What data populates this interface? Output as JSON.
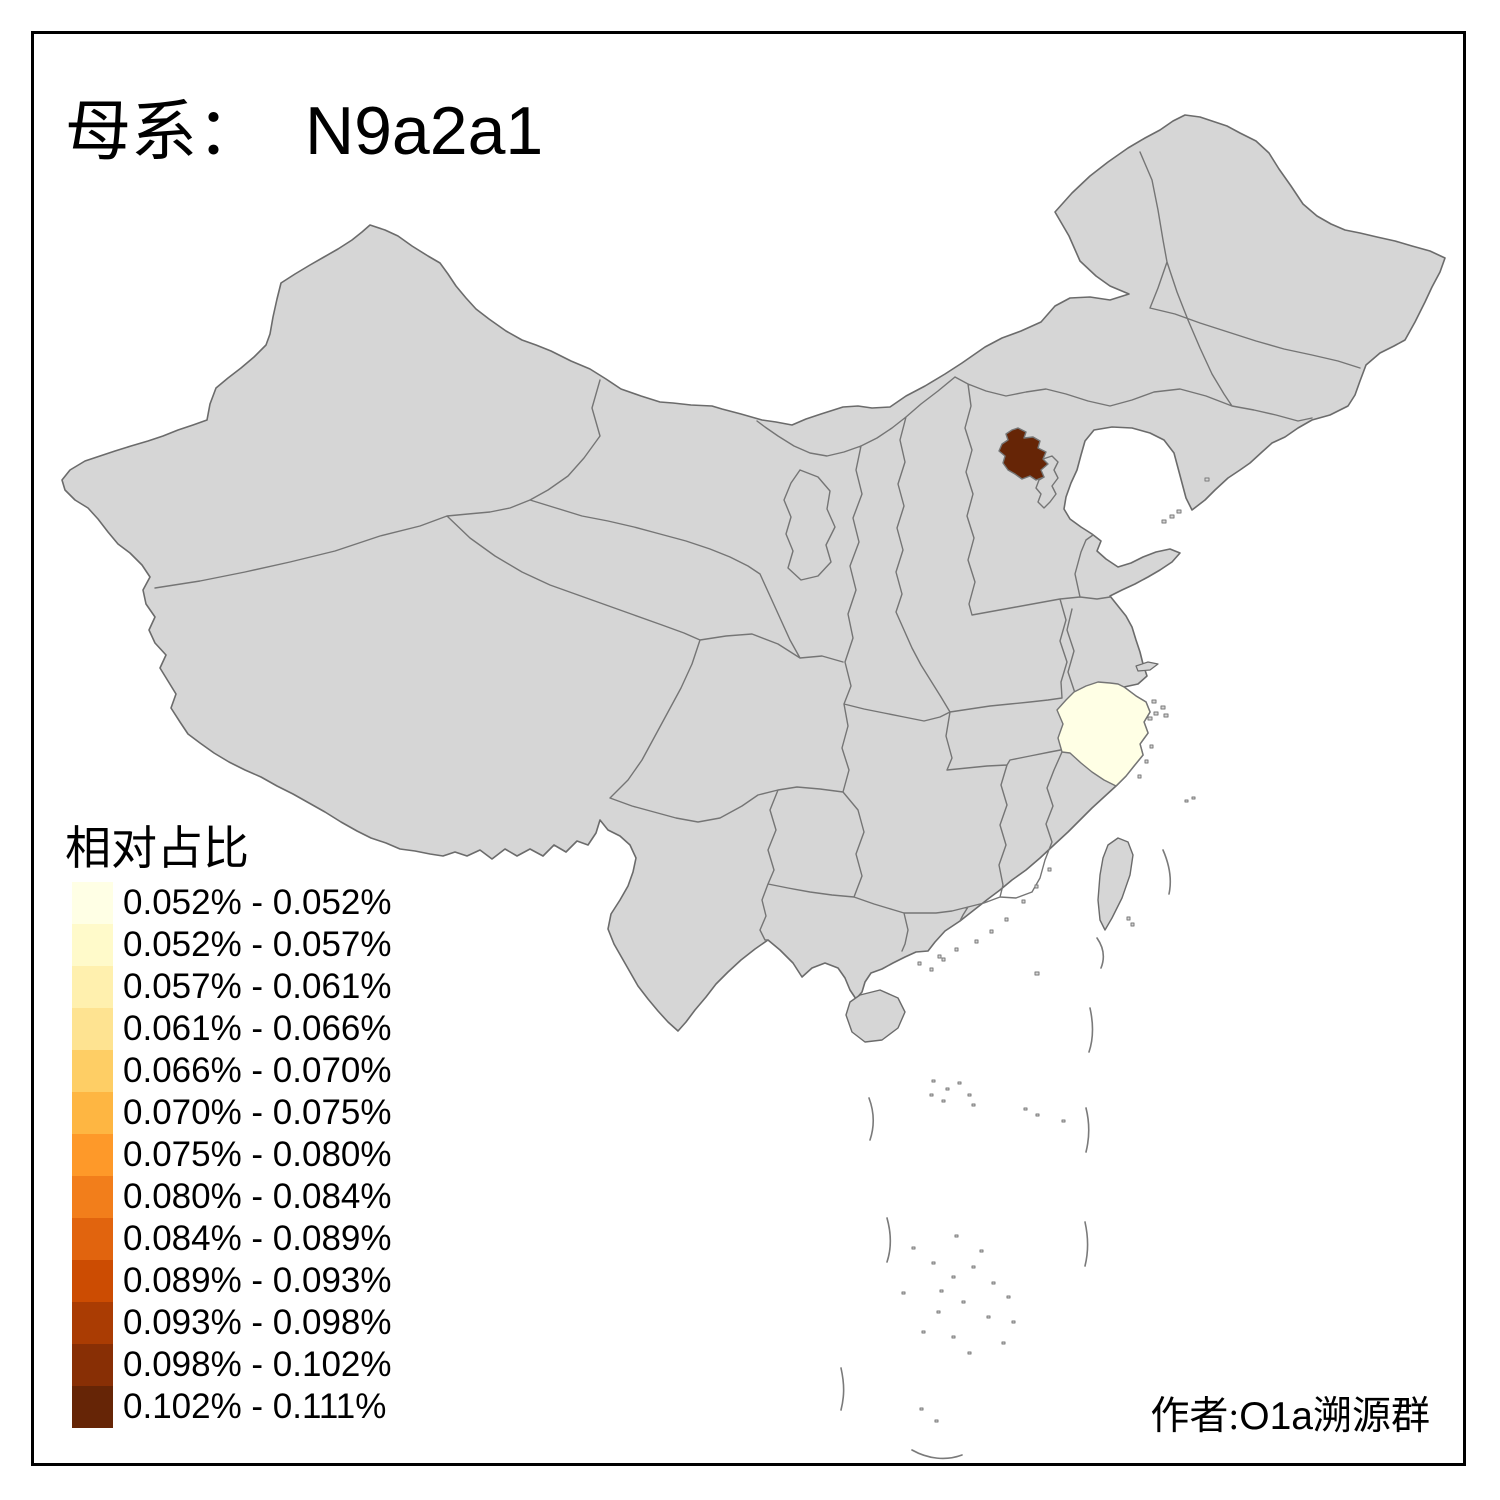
{
  "texts": {
    "title_prefix": "母系：",
    "title_value": "N9a2a1",
    "legend_title": "相对占比",
    "attribution_prefix": "作者:",
    "attribution_latin": "O1a",
    "attribution_suffix": "溯源群"
  },
  "colors": {
    "background": "#FFFFFF",
    "frame": "#000000",
    "province_fill": "#D6D6D6",
    "province_border": "#757575",
    "coast_border": "#6B6B6B",
    "text": "#000000"
  },
  "chart_data": {
    "type": "heatmap",
    "subtype": "choropleth-map-of-china",
    "title": "母系： N9a2a1",
    "legend_title": "相对占比",
    "legend_position": "bottom-left",
    "classes": [
      {
        "range": "0.052% - 0.052%",
        "color": "#FFFFE5"
      },
      {
        "range": "0.052% - 0.057%",
        "color": "#FFFACA"
      },
      {
        "range": "0.057% - 0.061%",
        "color": "#FFF0AE"
      },
      {
        "range": "0.061% - 0.066%",
        "color": "#FEE391"
      },
      {
        "range": "0.066% - 0.070%",
        "color": "#FECE65"
      },
      {
        "range": "0.070% - 0.075%",
        "color": "#FEB642"
      },
      {
        "range": "0.075% - 0.080%",
        "color": "#FE9929"
      },
      {
        "range": "0.080% - 0.084%",
        "color": "#F27E1B"
      },
      {
        "range": "0.084% - 0.089%",
        "color": "#E1640E"
      },
      {
        "range": "0.089% - 0.093%",
        "color": "#CC4C02"
      },
      {
        "range": "0.093% - 0.098%",
        "color": "#AA3C03"
      },
      {
        "range": "0.098% - 0.102%",
        "color": "#882F05"
      },
      {
        "range": "0.102% - 0.111%",
        "color": "#662506"
      }
    ],
    "regions": [
      {
        "name": "Beijing",
        "range": "0.102% - 0.111%",
        "color": "#662506"
      },
      {
        "name": "Zhejiang",
        "range": "0.052% - 0.052%",
        "color": "#FFFFE5"
      }
    ],
    "other_regions": "no data shown (gray fill)"
  }
}
